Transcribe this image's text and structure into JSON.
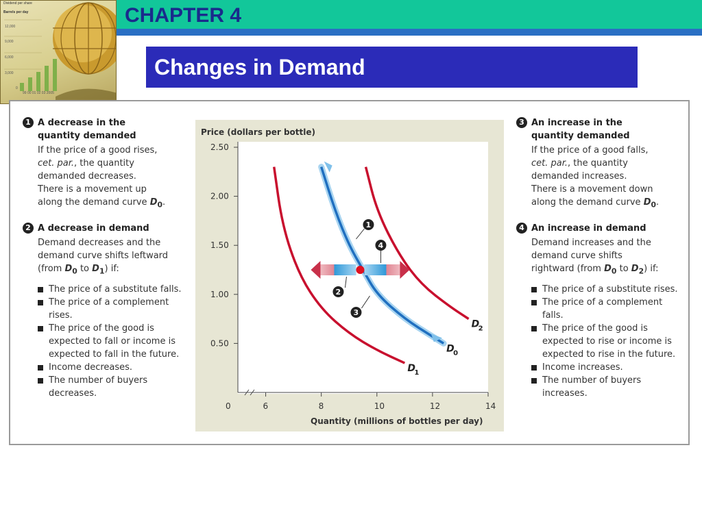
{
  "header": {
    "chapter": "CHAPTER 4",
    "title": "Changes in Demand"
  },
  "logo": {
    "lines": [
      "Dividend per share",
      "Barrels per day",
      "12,000",
      "9,000",
      "6,000",
      "3,000",
      "0"
    ],
    "years": "99 00 01 02 03 2005"
  },
  "left": {
    "s1": {
      "num": "1",
      "title_a": "A decrease in the",
      "title_b": "quantity demanded",
      "l1": "If the price of a good rises,",
      "l2a": "cet. par.",
      "l2b": ", the quantity",
      "l3": "demanded decreases.",
      "l4": "There is a movement up",
      "l5": "along the demand curve",
      "d": "D",
      "sub": "0",
      "dot": "."
    },
    "s2": {
      "num": "2",
      "title": "A decrease in demand",
      "l1": "Demand decreases and the",
      "l2": "demand curve shifts leftward",
      "l3a": "(from",
      "d0": "D",
      "s0": "0",
      "to": "to",
      "d1": "D",
      "s1": "1",
      "l3b": ") if:",
      "bullets": [
        "The price of a substitute falls.",
        "The price of a complement rises.",
        "The price of the good is expected to fall or income is expected to fall in the future.",
        "Income decreases.",
        "The number of buyers decreases."
      ]
    }
  },
  "right": {
    "s3": {
      "num": "3",
      "title_a": "An increase in the",
      "title_b": "quantity demanded",
      "l1": "If the price of a good falls,",
      "l2a": "cet. par.",
      "l2b": ", the quantity",
      "l3": "demanded increases.",
      "l4": "There is a movement down",
      "l5": "along the demand curve",
      "d": "D",
      "sub": "0",
      "dot": "."
    },
    "s4": {
      "num": "4",
      "title": "An increase in demand",
      "l1": "Demand increases and the",
      "l2": "demand curve shifts",
      "l3a": "rightward (from",
      "d0": "D",
      "s0": "0",
      "to": "to",
      "d2": "D",
      "s2": "2",
      "l3b": ") if:",
      "bullets": [
        "The price of a substitute rises.",
        "The price of a complement falls.",
        "The price of the good is expected to rise or income is expected to rise in the future.",
        "Income increases.",
        "The number of buyers increases."
      ]
    }
  },
  "chart_data": {
    "type": "line",
    "ylabel": "Price (dollars per bottle)",
    "xlabel": "Quantity (millions of bottles per day)",
    "x_ticks": [
      "6",
      "8",
      "10",
      "12",
      "14"
    ],
    "y_ticks": [
      "0.50",
      "1.00",
      "1.50",
      "2.00",
      "2.50"
    ],
    "origin": "0",
    "xlim": [
      5,
      14
    ],
    "ylim": [
      0,
      2.5
    ],
    "series": [
      {
        "name": "D0",
        "label": "D",
        "sub": "0",
        "color": "#1f6fc0",
        "points": [
          [
            8,
            2.3
          ],
          [
            8.5,
            1.85
          ],
          [
            9,
            1.5
          ],
          [
            9.5,
            1.25
          ],
          [
            10,
            1.0
          ],
          [
            11,
            0.75
          ],
          [
            12,
            0.57
          ],
          [
            12.4,
            0.5
          ]
        ]
      },
      {
        "name": "D1",
        "label": "D",
        "sub": "1",
        "color": "#c8102e",
        "points": [
          [
            6.3,
            2.3
          ],
          [
            6.6,
            1.7
          ],
          [
            7.2,
            1.2
          ],
          [
            8,
            0.85
          ],
          [
            9,
            0.6
          ],
          [
            10,
            0.43
          ],
          [
            11,
            0.3
          ]
        ]
      },
      {
        "name": "D2",
        "label": "D",
        "sub": "2",
        "color": "#c8102e",
        "points": [
          [
            9.6,
            2.3
          ],
          [
            10,
            1.85
          ],
          [
            10.8,
            1.4
          ],
          [
            11.6,
            1.1
          ],
          [
            12.6,
            0.88
          ],
          [
            13.3,
            0.75
          ]
        ]
      }
    ],
    "point": {
      "x": 9.4,
      "y": 1.25,
      "color": "#e01020"
    },
    "markers": [
      "1",
      "2",
      "3",
      "4"
    ]
  }
}
